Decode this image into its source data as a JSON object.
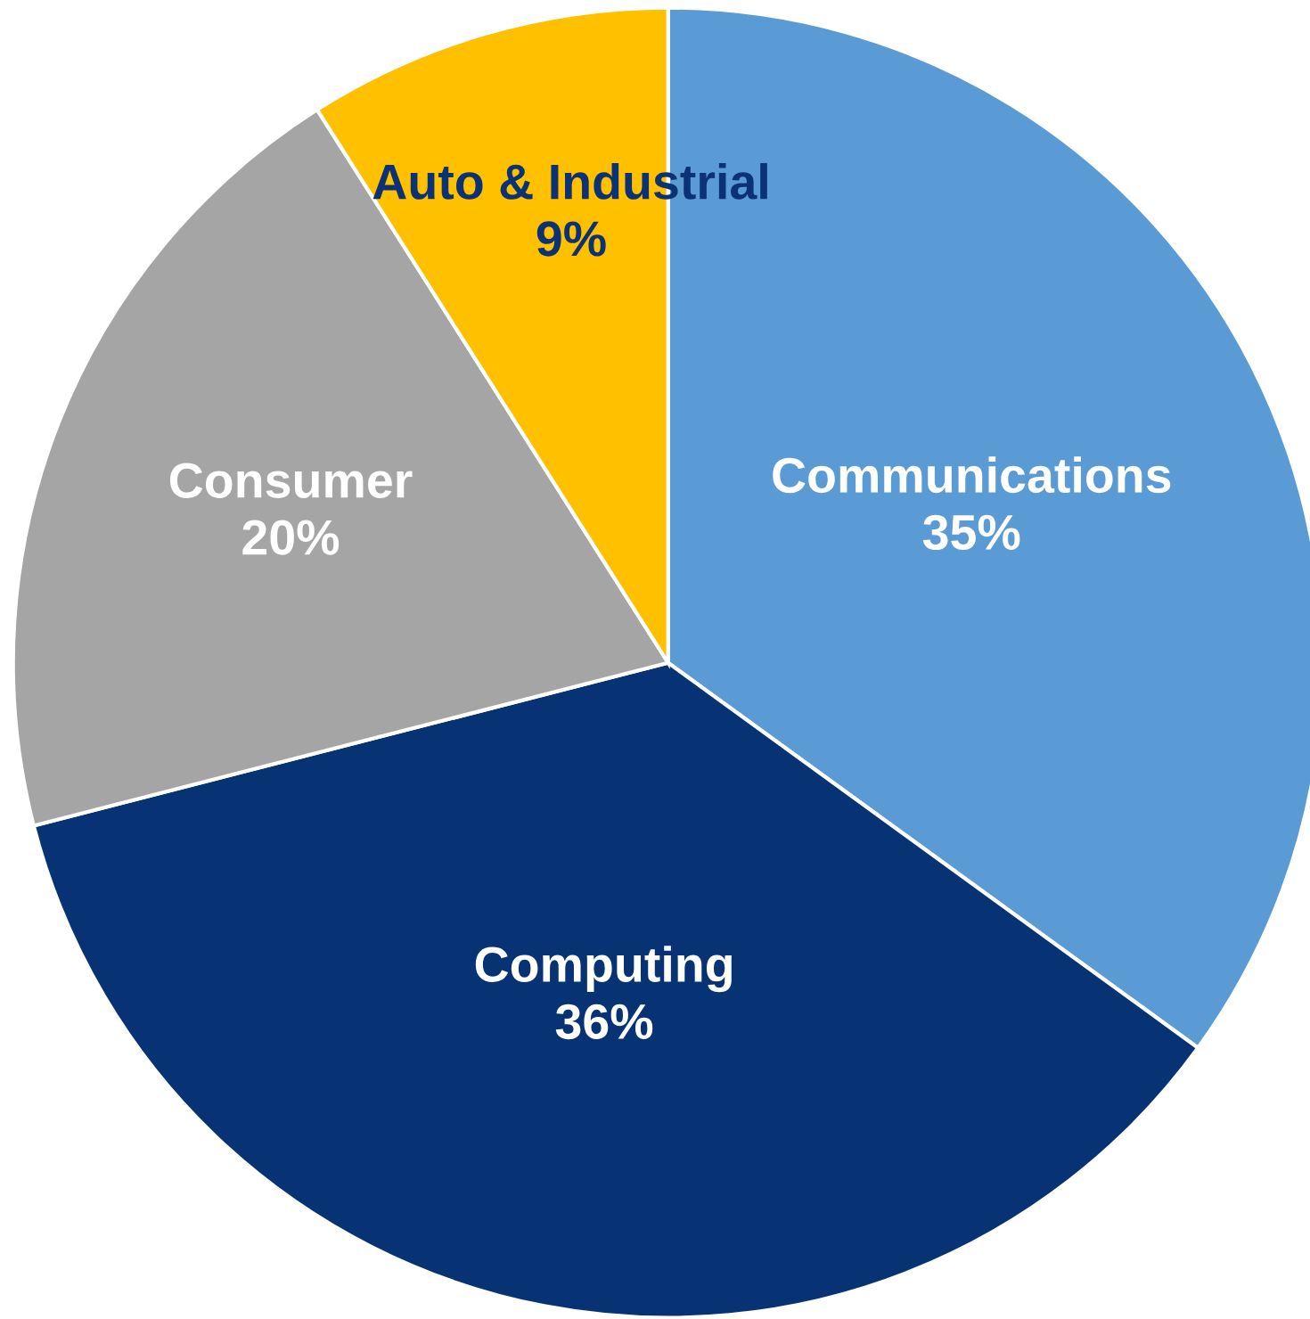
{
  "chart_data": {
    "type": "pie",
    "categories": [
      "Communications",
      "Computing",
      "Consumer",
      "Auto & Industrial"
    ],
    "values": [
      35,
      36,
      20,
      9
    ],
    "value_labels": [
      "35%",
      "36%",
      "20%",
      "9%"
    ],
    "colors": [
      "#5b9bd5",
      "#073375",
      "#a5a5a5",
      "#ffc000"
    ]
  }
}
